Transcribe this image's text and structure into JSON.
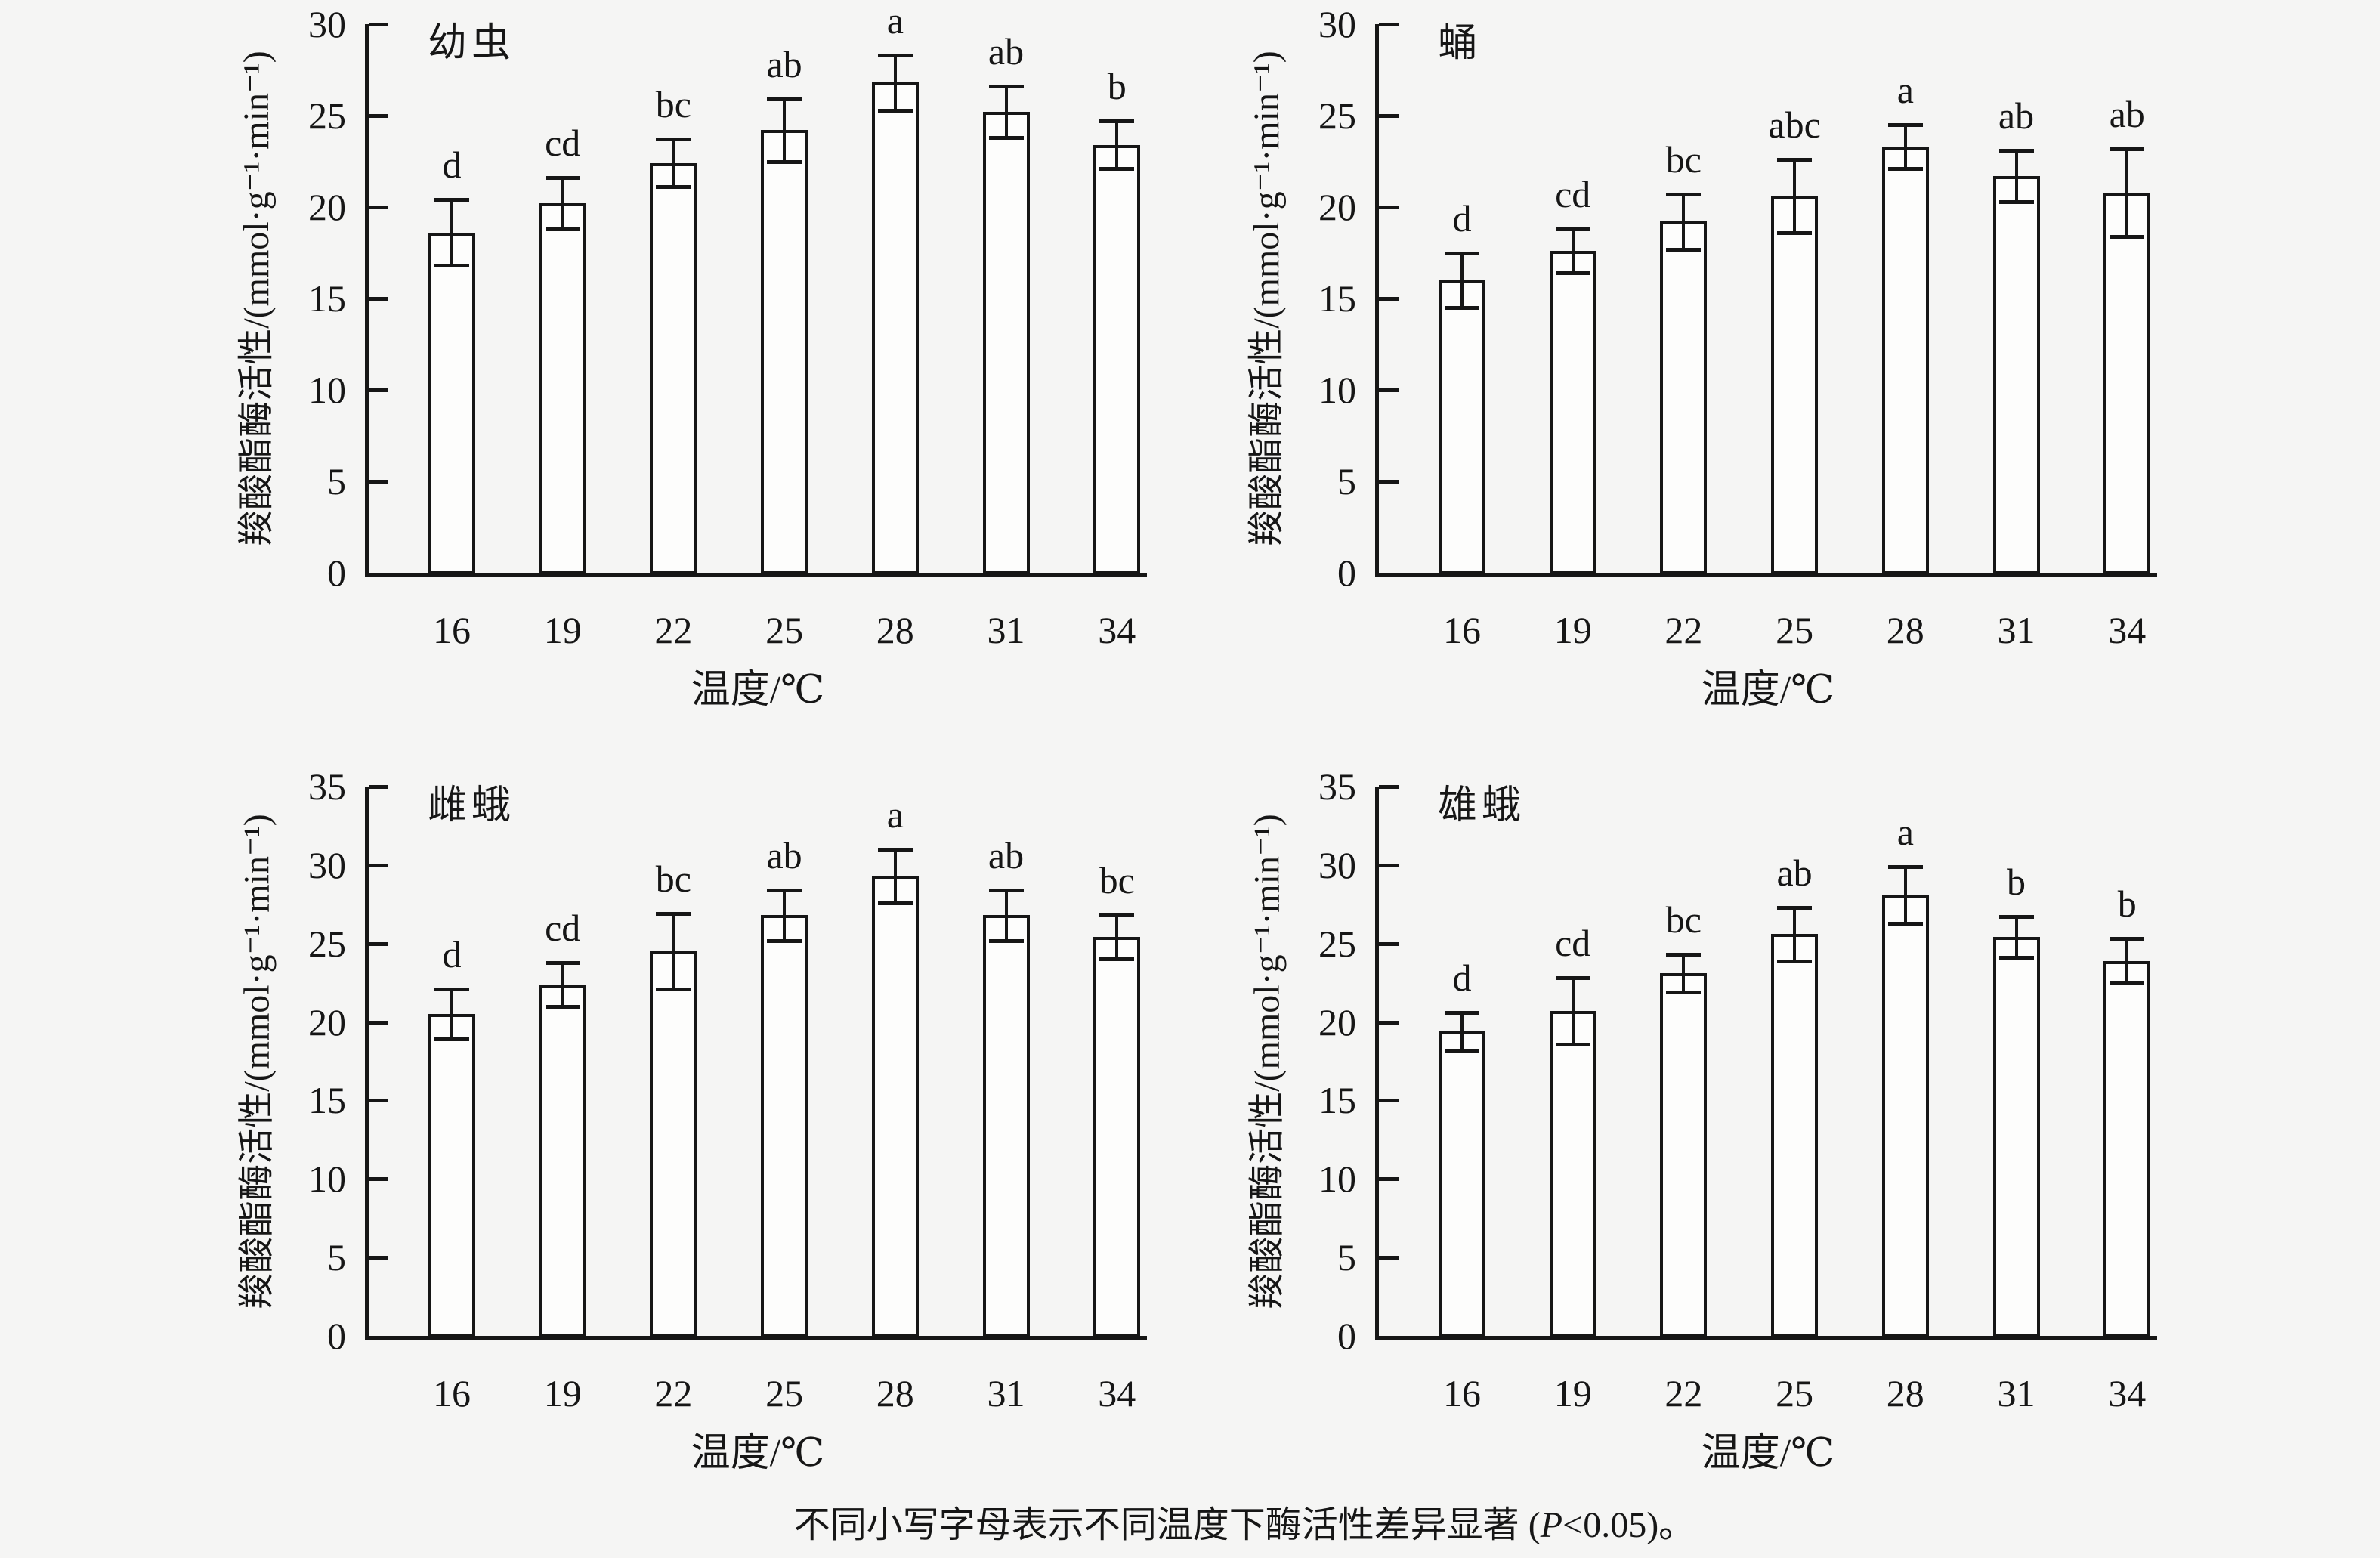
{
  "figure": {
    "background_color": "#f5f5f4",
    "line_color": "#161616",
    "bar_fill_color": "#fdfdfc"
  },
  "caption": {
    "prefix": "不同小写字母表示不同温度下酶活性差异显著 (",
    "p_symbol": "P",
    "suffix": "<0.05)。"
  },
  "chart_data": [
    {
      "type": "bar",
      "panel": "top-left",
      "title": "幼虫",
      "categories": [
        "16",
        "19",
        "22",
        "25",
        "28",
        "31",
        "34"
      ],
      "values": [
        18.6,
        20.2,
        22.4,
        24.2,
        26.8,
        25.2,
        23.4
      ],
      "errors": [
        1.8,
        1.4,
        1.3,
        1.7,
        1.5,
        1.4,
        1.3
      ],
      "sig_letters": [
        "d",
        "cd",
        "bc",
        "ab",
        "a",
        "ab",
        "b"
      ],
      "xlabel": "温度/℃",
      "ylabel": "羧酸酯酶活性/(mmol·g⁻¹·min⁻¹)",
      "ylim": [
        0,
        30
      ],
      "ytick_step": 5,
      "grid": "off",
      "legend": "none"
    },
    {
      "type": "bar",
      "panel": "top-right",
      "title": "蛹",
      "categories": [
        "16",
        "19",
        "22",
        "25",
        "28",
        "31",
        "34"
      ],
      "values": [
        16.0,
        17.6,
        19.2,
        20.6,
        23.3,
        21.7,
        20.8
      ],
      "errors": [
        1.5,
        1.2,
        1.5,
        2.0,
        1.2,
        1.4,
        2.4
      ],
      "sig_letters": [
        "d",
        "cd",
        "bc",
        "abc",
        "a",
        "ab",
        "ab"
      ],
      "xlabel": "温度/℃",
      "ylabel": "羧酸酯酶活性/(mmol·g⁻¹·min⁻¹)",
      "ylim": [
        0,
        30
      ],
      "ytick_step": 5,
      "grid": "off",
      "legend": "none"
    },
    {
      "type": "bar",
      "panel": "bottom-left",
      "title": "雌蛾",
      "categories": [
        "16",
        "19",
        "22",
        "25",
        "28",
        "31",
        "34"
      ],
      "values": [
        20.5,
        22.4,
        24.5,
        26.8,
        29.3,
        26.8,
        25.4
      ],
      "errors": [
        1.6,
        1.4,
        2.4,
        1.6,
        1.7,
        1.6,
        1.4
      ],
      "sig_letters": [
        "d",
        "cd",
        "bc",
        "ab",
        "a",
        "ab",
        "bc"
      ],
      "xlabel": "温度/℃",
      "ylabel": "羧酸酯酶活性/(mmol·g⁻¹·min⁻¹)",
      "ylim": [
        0,
        35
      ],
      "ytick_step": 5,
      "grid": "off",
      "legend": "none"
    },
    {
      "type": "bar",
      "panel": "bottom-right",
      "title": "雄蛾",
      "categories": [
        "16",
        "19",
        "22",
        "25",
        "28",
        "31",
        "34"
      ],
      "values": [
        19.4,
        20.7,
        23.1,
        25.6,
        28.1,
        25.4,
        23.9
      ],
      "errors": [
        1.2,
        2.1,
        1.2,
        1.7,
        1.8,
        1.3,
        1.4
      ],
      "sig_letters": [
        "d",
        "cd",
        "bc",
        "ab",
        "a",
        "b",
        "b"
      ],
      "xlabel": "温度/℃",
      "ylabel": "羧酸酯酶活性/(mmol·g⁻¹·min⁻¹)",
      "ylim": [
        0,
        35
      ],
      "ytick_step": 5,
      "grid": "off",
      "legend": "none"
    }
  ]
}
